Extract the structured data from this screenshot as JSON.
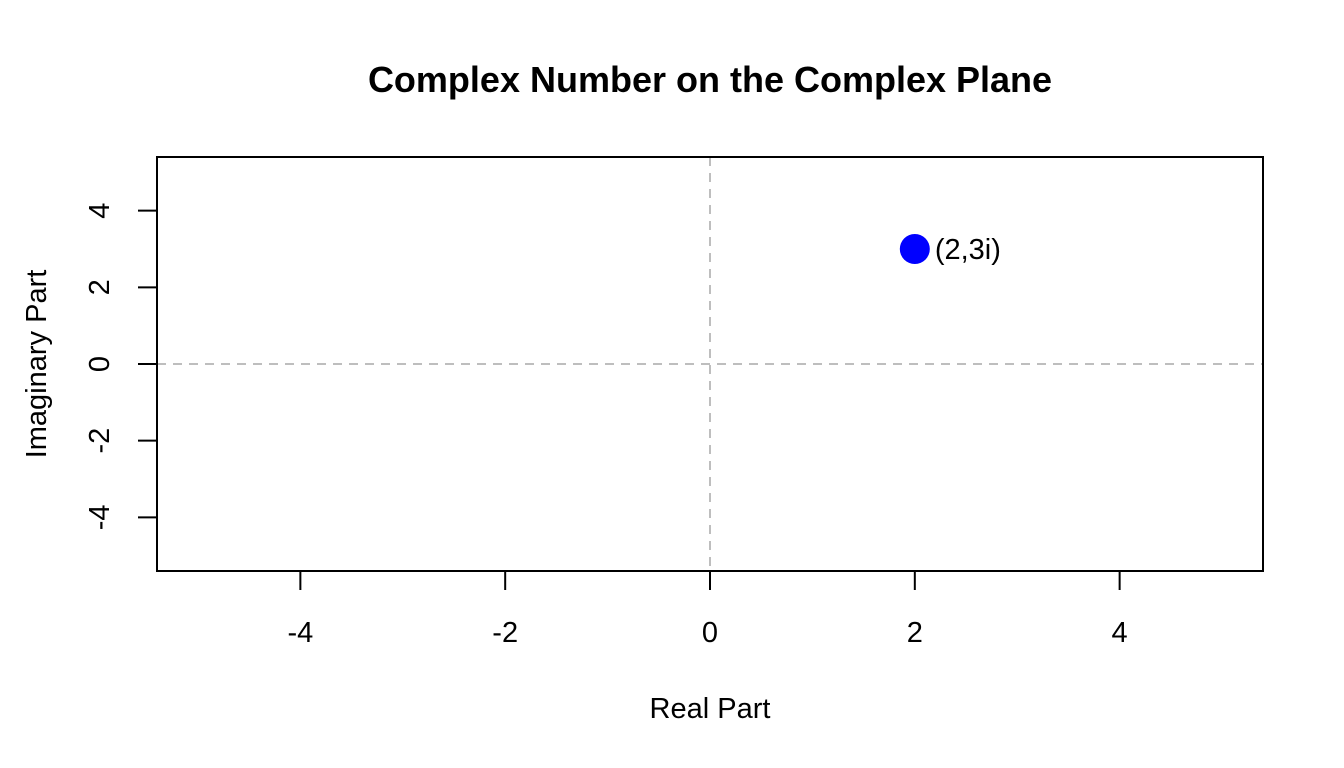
{
  "chart_data": {
    "type": "scatter",
    "title": "Complex Number on the Complex Plane",
    "xlabel": "Real Part",
    "ylabel": "Imaginary Part",
    "xlim": [
      -5.4,
      5.4
    ],
    "ylim": [
      -5.4,
      5.4
    ],
    "xticks": [
      -4,
      -2,
      0,
      2,
      4
    ],
    "yticks": [
      -4,
      -2,
      0,
      2,
      4
    ],
    "xtick_labels": [
      "-4",
      "-2",
      "0",
      "2",
      "4"
    ],
    "ytick_labels": [
      "-4",
      "-2",
      "0",
      "2",
      "4"
    ],
    "grid": false,
    "reference_lines": {
      "horizontal": [
        0
      ],
      "vertical": [
        0
      ],
      "color": "#bebebe",
      "style": "dashed"
    },
    "points": [
      {
        "x": 2,
        "y": 3,
        "label": "(2,3i)",
        "color": "#0000ff"
      }
    ]
  }
}
